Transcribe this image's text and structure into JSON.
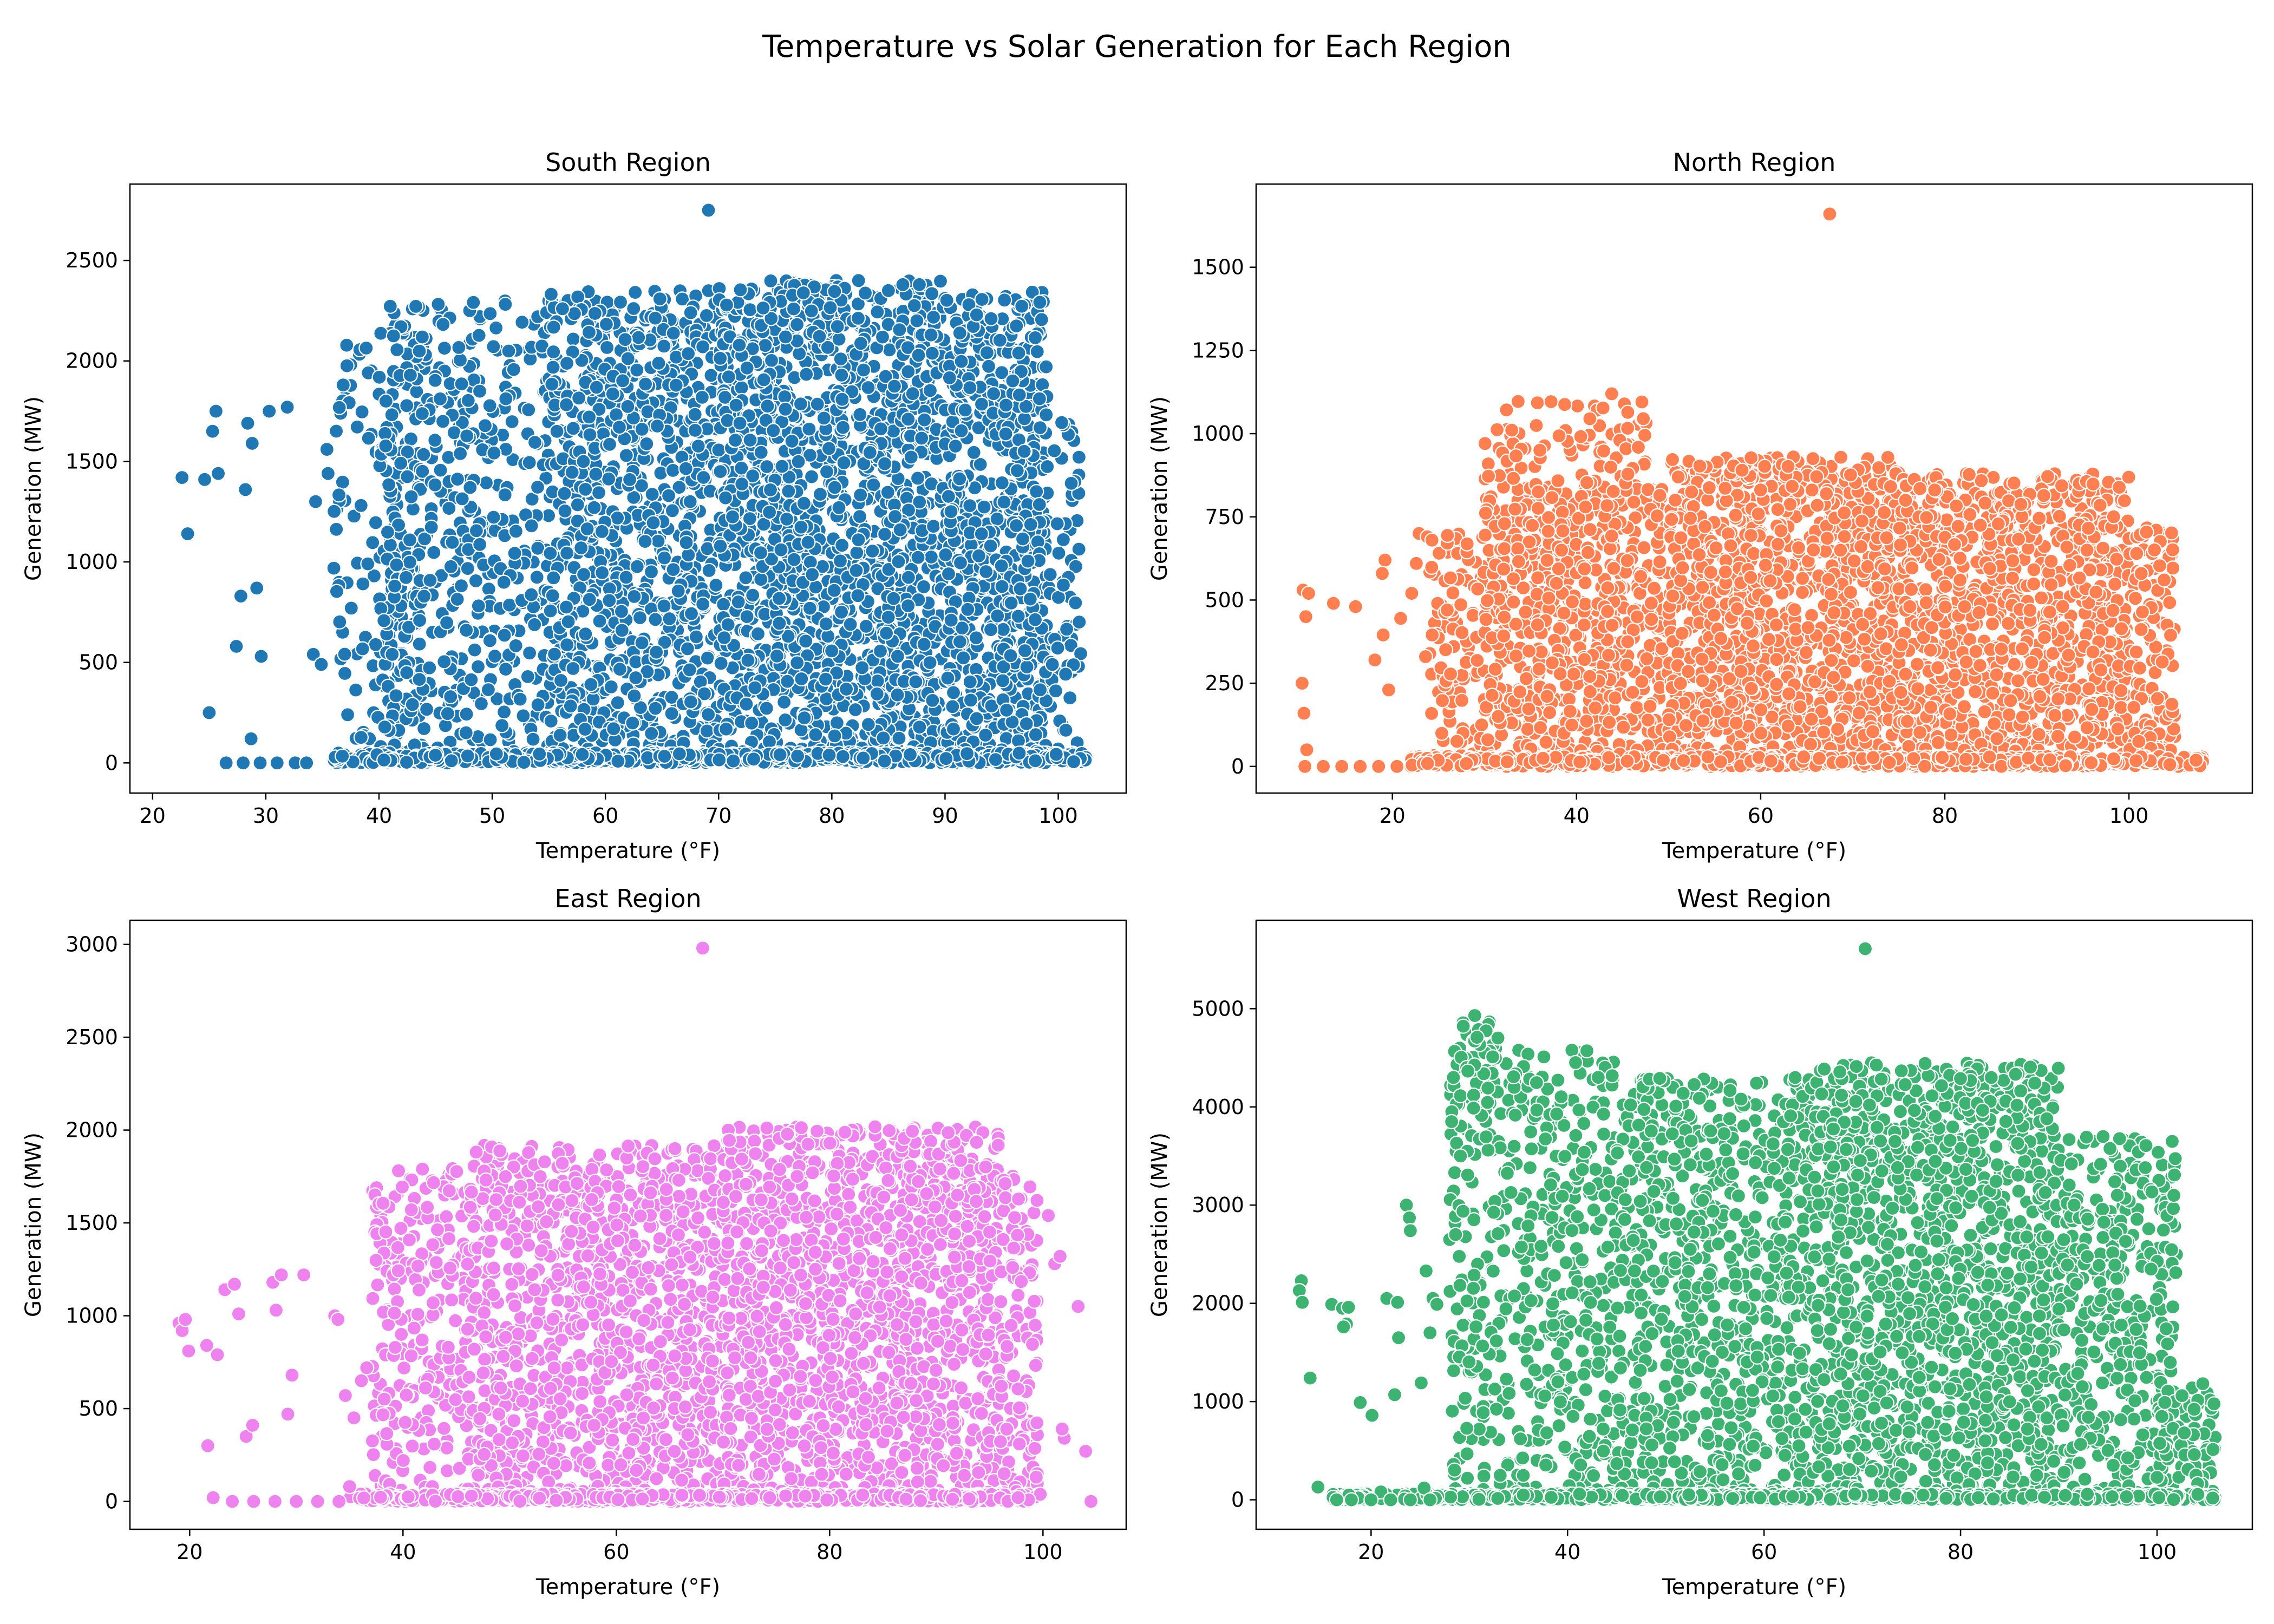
{
  "figure": {
    "title": "Temperature vs Solar Generation for Each Region"
  },
  "chart_data": [
    {
      "type": "scatter",
      "title": "South Region",
      "xlabel": "Temperature (°F)",
      "ylabel": "Generation (MW)",
      "xlim": [
        18,
        106
      ],
      "ylim": [
        -150,
        2880
      ],
      "xticks": [
        20,
        30,
        40,
        50,
        60,
        70,
        80,
        90,
        100
      ],
      "yticks": [
        0,
        500,
        1000,
        1500,
        2000,
        2500
      ],
      "color": "#1f77b4",
      "grid": false,
      "series": [
        {
          "points": [
            [
              22.6,
              1420
            ],
            [
              23.1,
              1140
            ],
            [
              24.6,
              1410
            ],
            [
              25.3,
              1650
            ],
            [
              25.6,
              1750
            ],
            [
              25.8,
              1440
            ],
            [
              25.0,
              250
            ],
            [
              27.4,
              580
            ],
            [
              27.8,
              830
            ],
            [
              28.2,
              1360
            ],
            [
              28.4,
              1690
            ],
            [
              28.8,
              1590
            ],
            [
              29.2,
              870
            ],
            [
              29.6,
              530
            ],
            [
              30.3,
              1750
            ],
            [
              31.9,
              1770
            ],
            [
              34.2,
              540
            ],
            [
              34.4,
              1300
            ],
            [
              34.9,
              490
            ],
            [
              35.5,
              1440
            ],
            [
              35.4,
              1560
            ],
            [
              28.7,
              120
            ],
            [
              26.5,
              0
            ],
            [
              28.0,
              0
            ],
            [
              29.5,
              0
            ],
            [
              31.0,
              0
            ],
            [
              32.6,
              0
            ],
            [
              33.6,
              0
            ],
            [
              69.1,
              2750
            ]
          ]
        }
      ],
      "clusters": [
        {
          "x": [
            36,
            44
          ],
          "y": [
            0,
            2100
          ],
          "n": 150
        },
        {
          "x": [
            40,
            55
          ],
          "y": [
            0,
            2300
          ],
          "n": 500
        },
        {
          "x": [
            55,
            70
          ],
          "y": [
            0,
            2350
          ],
          "n": 900
        },
        {
          "x": [
            70,
            90
          ],
          "y": [
            0,
            2400
          ],
          "n": 1500
        },
        {
          "x": [
            90,
            99
          ],
          "y": [
            0,
            2350
          ],
          "n": 600
        },
        {
          "x": [
            95,
            102
          ],
          "y": [
            0,
            1700
          ],
          "n": 150
        },
        {
          "x": [
            36,
            102.5
          ],
          "y": [
            0,
            50
          ],
          "n": 700
        }
      ]
    },
    {
      "type": "scatter",
      "title": "North Region",
      "xlabel": "Temperature (°F)",
      "ylabel": "Generation (MW)",
      "xlim": [
        5.2,
        113.4
      ],
      "ylim": [
        -80,
        1750
      ],
      "xticks": [
        20,
        40,
        60,
        80,
        100
      ],
      "yticks": [
        0,
        250,
        500,
        750,
        1000,
        1250,
        1500
      ],
      "color": "#ff7f50",
      "grid": false,
      "series": [
        {
          "points": [
            [
              10.3,
              530
            ],
            [
              10.6,
              450
            ],
            [
              10.9,
              520
            ],
            [
              10.2,
              250
            ],
            [
              10.4,
              160
            ],
            [
              10.7,
              50
            ],
            [
              13.6,
              490
            ],
            [
              16.0,
              480
            ],
            [
              18.1,
              320
            ],
            [
              19.2,
              620
            ],
            [
              18.9,
              580
            ],
            [
              19.6,
              230
            ],
            [
              19.0,
              395
            ],
            [
              20.9,
              445
            ],
            [
              22.1,
              520
            ],
            [
              22.6,
              610
            ],
            [
              22.9,
              700
            ],
            [
              23.6,
              330
            ],
            [
              23.8,
              690
            ],
            [
              24.3,
              680
            ],
            [
              10.5,
              0
            ],
            [
              12.5,
              0
            ],
            [
              14.5,
              0
            ],
            [
              16.5,
              0
            ],
            [
              18.5,
              0
            ],
            [
              20.5,
              0
            ],
            [
              67.5,
              1660
            ]
          ]
        }
      ],
      "clusters": [
        {
          "x": [
            24,
            30
          ],
          "y": [
            0,
            700
          ],
          "n": 100
        },
        {
          "x": [
            30,
            50
          ],
          "y": [
            0,
            850
          ],
          "n": 700
        },
        {
          "x": [
            30,
            48
          ],
          "y": [
            850,
            1120
          ],
          "n": 80
        },
        {
          "x": [
            50,
            75
          ],
          "y": [
            0,
            930
          ],
          "n": 1200
        },
        {
          "x": [
            75,
            100
          ],
          "y": [
            0,
            880
          ],
          "n": 1000
        },
        {
          "x": [
            100,
            105
          ],
          "y": [
            0,
            720
          ],
          "n": 120
        },
        {
          "x": [
            22,
            108
          ],
          "y": [
            0,
            30
          ],
          "n": 600
        }
      ]
    },
    {
      "type": "scatter",
      "title": "East Region",
      "xlabel": "Temperature (°F)",
      "ylabel": "Generation (MW)",
      "xlim": [
        14.4,
        107.8
      ],
      "ylim": [
        -150,
        3130
      ],
      "xticks": [
        20,
        40,
        60,
        80,
        100
      ],
      "yticks": [
        0,
        500,
        1000,
        1500,
        2000,
        2500,
        3000
      ],
      "color": "#ee82ee",
      "grid": false,
      "series": [
        {
          "points": [
            [
              19.0,
              960
            ],
            [
              19.3,
              920
            ],
            [
              19.6,
              980
            ],
            [
              19.9,
              810
            ],
            [
              21.6,
              840
            ],
            [
              22.6,
              790
            ],
            [
              23.3,
              1140
            ],
            [
              24.2,
              1170
            ],
            [
              24.6,
              1010
            ],
            [
              25.3,
              350
            ],
            [
              25.9,
              410
            ],
            [
              27.8,
              1180
            ],
            [
              28.1,
              1030
            ],
            [
              28.6,
              1220
            ],
            [
              29.2,
              470
            ],
            [
              29.6,
              680
            ],
            [
              30.7,
              1220
            ],
            [
              33.6,
              1000
            ],
            [
              33.9,
              980
            ],
            [
              21.7,
              300
            ],
            [
              22.2,
              20
            ],
            [
              24.0,
              0
            ],
            [
              26.0,
              0
            ],
            [
              28.0,
              0
            ],
            [
              30.0,
              0
            ],
            [
              32.0,
              0
            ],
            [
              34.0,
              0
            ],
            [
              35.0,
              80
            ],
            [
              35.4,
              450
            ],
            [
              34.6,
              570
            ],
            [
              36.1,
              650
            ],
            [
              36.6,
              720
            ],
            [
              100.5,
              1540
            ],
            [
              101.1,
              1280
            ],
            [
              101.6,
              1320
            ],
            [
              102.0,
              340
            ],
            [
              101.8,
              390
            ],
            [
              103.3,
              1050
            ],
            [
              104.0,
              270
            ],
            [
              104.5,
              0
            ],
            [
              68.1,
              2980
            ]
          ]
        }
      ],
      "clusters": [
        {
          "x": [
            37,
            46
          ],
          "y": [
            0,
            1800
          ],
          "n": 250
        },
        {
          "x": [
            46,
            70
          ],
          "y": [
            0,
            1920
          ],
          "n": 1100
        },
        {
          "x": [
            70,
            96
          ],
          "y": [
            0,
            2020
          ],
          "n": 1500
        },
        {
          "x": [
            96,
            99.5
          ],
          "y": [
            0,
            1780
          ],
          "n": 120
        },
        {
          "x": [
            35,
            100
          ],
          "y": [
            0,
            40
          ],
          "n": 700
        }
      ]
    },
    {
      "type": "scatter",
      "title": "West Region",
      "xlabel": "Temperature (°F)",
      "ylabel": "Generation (MW)",
      "xlim": [
        8.3,
        109.7
      ],
      "ylim": [
        -300,
        5900
      ],
      "xticks": [
        20,
        40,
        60,
        80,
        100
      ],
      "yticks": [
        0,
        1000,
        2000,
        3000,
        4000,
        5000
      ],
      "color": "#3cb371",
      "grid": false,
      "series": [
        {
          "points": [
            [
              12.9,
              2230
            ],
            [
              12.7,
              2130
            ],
            [
              13.0,
              2010
            ],
            [
              13.8,
              1240
            ],
            [
              14.6,
              130
            ],
            [
              16.0,
              1990
            ],
            [
              17.1,
              1950
            ],
            [
              17.5,
              1790
            ],
            [
              17.7,
              1960
            ],
            [
              17.2,
              1760
            ],
            [
              18.9,
              990
            ],
            [
              20.1,
              860
            ],
            [
              21.0,
              80
            ],
            [
              21.6,
              2050
            ],
            [
              22.4,
              1070
            ],
            [
              22.8,
              1650
            ],
            [
              22.7,
              2010
            ],
            [
              23.6,
              3000
            ],
            [
              23.9,
              2870
            ],
            [
              24.0,
              2740
            ],
            [
              25.1,
              1190
            ],
            [
              25.6,
              2330
            ],
            [
              26.0,
              1700
            ],
            [
              26.3,
              2050
            ],
            [
              26.7,
              1990
            ],
            [
              28.0,
              2650
            ],
            [
              28.2,
              3850
            ],
            [
              28.6,
              2700
            ],
            [
              29.1,
              3500
            ],
            [
              25.4,
              120
            ],
            [
              16.5,
              0
            ],
            [
              18.0,
              0
            ],
            [
              20.0,
              0
            ],
            [
              22.0,
              0
            ],
            [
              24.0,
              0
            ],
            [
              26.0,
              0
            ],
            [
              70.3,
              5610
            ]
          ]
        }
      ],
      "clusters": [
        {
          "x": [
            28,
            45
          ],
          "y": [
            0,
            4600
          ],
          "n": 500
        },
        {
          "x": [
            29,
            33
          ],
          "y": [
            4300,
            4990
          ],
          "n": 25
        },
        {
          "x": [
            45,
            65
          ],
          "y": [
            0,
            4300
          ],
          "n": 800
        },
        {
          "x": [
            65,
            90
          ],
          "y": [
            0,
            4450
          ],
          "n": 1400
        },
        {
          "x": [
            90,
            102
          ],
          "y": [
            0,
            3700
          ],
          "n": 400
        },
        {
          "x": [
            100,
            106
          ],
          "y": [
            0,
            1200
          ],
          "n": 80
        },
        {
          "x": [
            16,
            106
          ],
          "y": [
            0,
            60
          ],
          "n": 700
        }
      ]
    }
  ]
}
